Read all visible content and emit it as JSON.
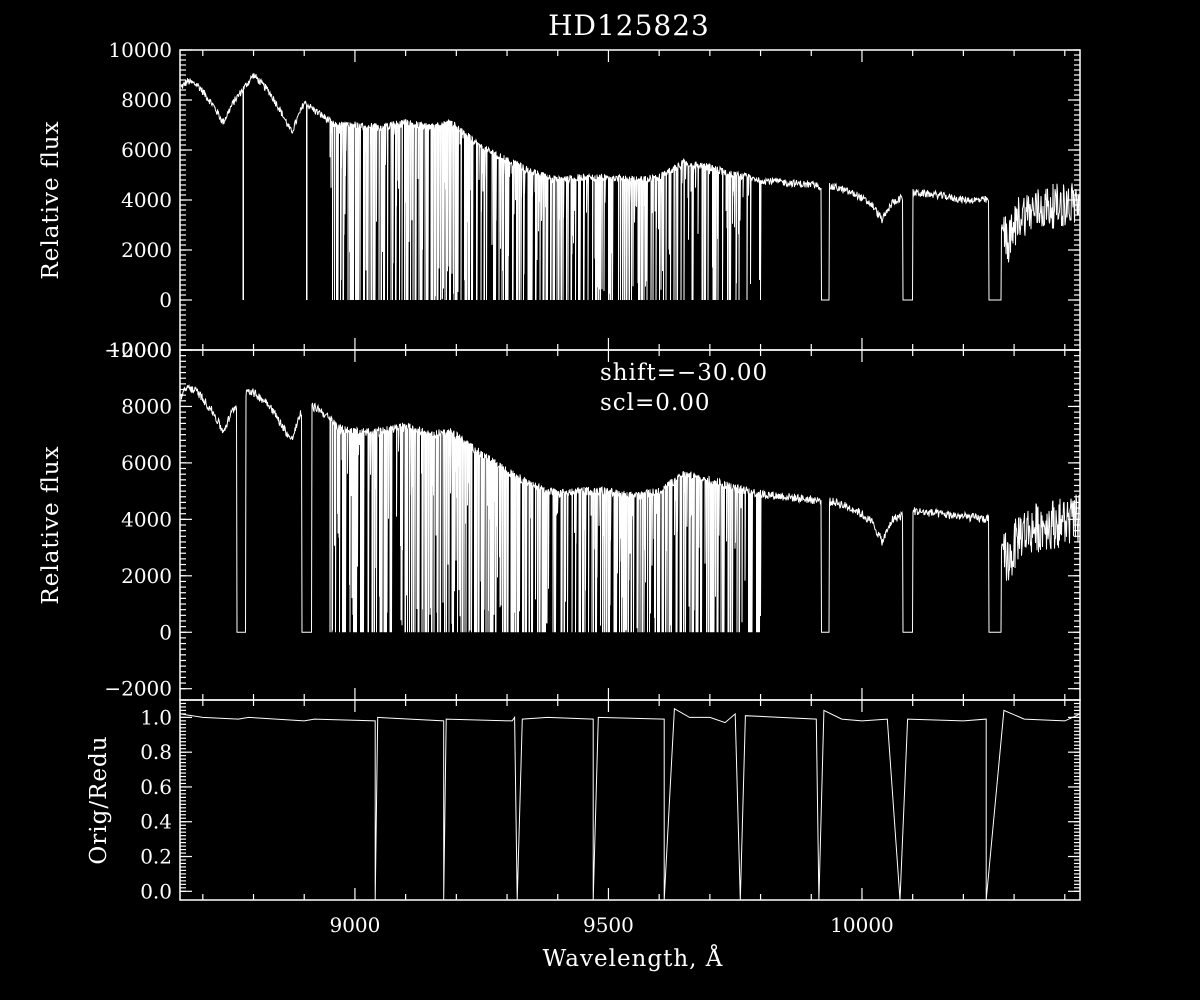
{
  "chart_data": {
    "type": "line",
    "title": "HD125823",
    "xlabel": "Wavelength, Å",
    "xlim": [
      8655,
      10430
    ],
    "x_ticks": [
      9000,
      9500,
      10000
    ],
    "x_tick_labels": [
      "9000",
      "9500",
      "10000"
    ],
    "grid": false,
    "panels": [
      {
        "id": "top",
        "ylabel": "Relative flux",
        "ylim": [
          -2000,
          10000
        ],
        "y_ticks": [
          -2000,
          0,
          2000,
          4000,
          6000,
          8000,
          10000
        ],
        "y_tick_labels": [
          "−2000",
          "0",
          "2000",
          "4000",
          "6000",
          "8000",
          "10000"
        ],
        "series": [
          {
            "continuum": [
              [
                8655,
                8450
              ],
              [
                8670,
                8750
              ],
              [
                8690,
                8600
              ],
              [
                8720,
                7800
              ],
              [
                8740,
                7100
              ],
              [
                8760,
                7900
              ],
              [
                8800,
                9000
              ],
              [
                8830,
                8350
              ],
              [
                8850,
                7700
              ],
              [
                8875,
                6700
              ],
              [
                8900,
                7900
              ],
              [
                8920,
                7600
              ],
              [
                8960,
                7000
              ],
              [
                9000,
                7000
              ],
              [
                9050,
                6900
              ],
              [
                9100,
                7100
              ],
              [
                9150,
                6900
              ],
              [
                9190,
                7100
              ],
              [
                9250,
                6100
              ],
              [
                9300,
                5600
              ],
              [
                9350,
                5100
              ],
              [
                9400,
                4800
              ],
              [
                9450,
                4900
              ],
              [
                9500,
                4900
              ],
              [
                9550,
                4800
              ],
              [
                9600,
                4900
              ],
              [
                9650,
                5500
              ],
              [
                9700,
                5300
              ],
              [
                9750,
                5000
              ],
              [
                9800,
                4800
              ],
              [
                9850,
                4700
              ],
              [
                9900,
                4600
              ],
              [
                9950,
                4500
              ],
              [
                9990,
                4200
              ],
              [
                10020,
                3800
              ],
              [
                10040,
                3200
              ],
              [
                10060,
                3900
              ],
              [
                10100,
                4300
              ],
              [
                10150,
                4200
              ],
              [
                10200,
                4000
              ],
              [
                10250,
                4000
              ],
              [
                10290,
                2300
              ],
              [
                10310,
                3400
              ],
              [
                10360,
                3700
              ],
              [
                10430,
                3900
              ]
            ],
            "gaps": [
              [
                9920,
                9935
              ],
              [
                10080,
                10100
              ],
              [
                10250,
                10275
              ]
            ],
            "absorption_bands": [
              [
                8950,
                9320,
                0.85
              ],
              [
                9320,
                9480,
                0.75
              ],
              [
                9480,
                9760,
                0.8
              ],
              [
                9760,
                9800,
                0.4
              ]
            ],
            "deep_lines": [
              8780,
              8905
            ]
          }
        ]
      },
      {
        "id": "middle",
        "ylabel": "Relative flux",
        "ylim": [
          -2400,
          10000
        ],
        "y_ticks": [
          -2000,
          0,
          2000,
          4000,
          6000,
          8000,
          10000
        ],
        "y_tick_labels": [
          "−2000",
          "0",
          "2000",
          "4000",
          "6000",
          "8000",
          "10000"
        ],
        "annotations": [
          "shift=−30.00",
          "scl=0.00"
        ],
        "series": [
          {
            "continuum": [
              [
                8655,
                8300
              ],
              [
                8670,
                8700
              ],
              [
                8690,
                8500
              ],
              [
                8720,
                7800
              ],
              [
                8740,
                7100
              ],
              [
                8760,
                7900
              ],
              [
                8790,
                8600
              ],
              [
                8830,
                8100
              ],
              [
                8850,
                7500
              ],
              [
                8875,
                6800
              ],
              [
                8900,
                8100
              ],
              [
                8930,
                7900
              ],
              [
                8970,
                7200
              ],
              [
                9000,
                7100
              ],
              [
                9050,
                7100
              ],
              [
                9100,
                7300
              ],
              [
                9150,
                7000
              ],
              [
                9190,
                7100
              ],
              [
                9250,
                6300
              ],
              [
                9300,
                5700
              ],
              [
                9350,
                5200
              ],
              [
                9400,
                4900
              ],
              [
                9450,
                5000
              ],
              [
                9500,
                5000
              ],
              [
                9550,
                4800
              ],
              [
                9600,
                5000
              ],
              [
                9650,
                5600
              ],
              [
                9700,
                5400
              ],
              [
                9750,
                5100
              ],
              [
                9800,
                4900
              ],
              [
                9850,
                4800
              ],
              [
                9900,
                4700
              ],
              [
                9950,
                4600
              ],
              [
                9990,
                4300
              ],
              [
                10020,
                3900
              ],
              [
                10040,
                3200
              ],
              [
                10060,
                4000
              ],
              [
                10100,
                4300
              ],
              [
                10150,
                4200
              ],
              [
                10200,
                4100
              ],
              [
                10250,
                4000
              ],
              [
                10290,
                2500
              ],
              [
                10310,
                3500
              ],
              [
                10360,
                3800
              ],
              [
                10430,
                4000
              ]
            ],
            "gaps": [
              [
                8767,
                8785
              ],
              [
                8895,
                8915
              ],
              [
                9920,
                9935
              ],
              [
                10080,
                10100
              ],
              [
                10250,
                10275
              ]
            ],
            "absorption_bands": [
              [
                8950,
                9320,
                0.85
              ],
              [
                9320,
                9480,
                0.75
              ],
              [
                9480,
                9760,
                0.8
              ],
              [
                9760,
                9800,
                0.4
              ]
            ],
            "deep_lines": []
          }
        ]
      },
      {
        "id": "bottom",
        "ylabel": "Orig/Redu",
        "ylim": [
          -0.05,
          1.1
        ],
        "y_ticks": [
          0.0,
          0.2,
          0.4,
          0.6,
          0.8,
          1.0
        ],
        "y_tick_labels": [
          "0.0",
          "0.2",
          "0.4",
          "0.6",
          "0.8",
          "1.0"
        ],
        "series": [
          {
            "ratio": [
              [
                8655,
                1.02
              ],
              [
                8700,
                1.0
              ],
              [
                8770,
                0.99
              ],
              [
                8790,
                1.0
              ],
              [
                8900,
                0.98
              ],
              [
                8920,
                0.99
              ],
              [
                9040,
                0.98
              ],
              [
                9040,
                -0.05
              ],
              [
                9045,
                1.0
              ],
              [
                9175,
                0.98
              ],
              [
                9175,
                -0.05
              ],
              [
                9180,
                0.99
              ],
              [
                9310,
                0.98
              ],
              [
                9315,
                1.0
              ],
              [
                9320,
                -0.05
              ],
              [
                9330,
                0.99
              ],
              [
                9380,
                1.0
              ],
              [
                9470,
                0.99
              ],
              [
                9470,
                -0.05
              ],
              [
                9480,
                1.0
              ],
              [
                9610,
                0.99
              ],
              [
                9610,
                -0.05
              ],
              [
                9630,
                1.05
              ],
              [
                9660,
                1.0
              ],
              [
                9700,
                1.0
              ],
              [
                9730,
                0.97
              ],
              [
                9750,
                1.02
              ],
              [
                9760,
                -0.05
              ],
              [
                9770,
                1.01
              ],
              [
                9910,
                0.99
              ],
              [
                9915,
                -0.05
              ],
              [
                9925,
                1.04
              ],
              [
                9960,
                0.99
              ],
              [
                10000,
                0.98
              ],
              [
                10050,
                0.99
              ],
              [
                10075,
                -0.05
              ],
              [
                10090,
                0.99
              ],
              [
                10200,
                0.98
              ],
              [
                10245,
                0.99
              ],
              [
                10245,
                -0.05
              ],
              [
                10280,
                1.04
              ],
              [
                10320,
                0.99
              ],
              [
                10400,
                0.98
              ],
              [
                10430,
                1.02
              ]
            ]
          }
        ]
      }
    ]
  }
}
